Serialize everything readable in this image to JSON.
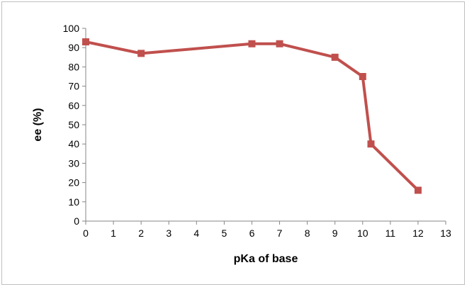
{
  "chart_data": {
    "type": "line",
    "title": "",
    "xlabel": "pKa of base",
    "ylabel": "ee (%)",
    "xlim": [
      0,
      13
    ],
    "ylim": [
      0,
      100
    ],
    "x_ticks": [
      0,
      1,
      2,
      3,
      4,
      5,
      6,
      7,
      8,
      9,
      10,
      11,
      12,
      13
    ],
    "y_ticks": [
      0,
      10,
      20,
      30,
      40,
      50,
      60,
      70,
      80,
      90,
      100
    ],
    "grid": false,
    "legend": "none",
    "series": [
      {
        "color": "#c0504d",
        "marker": "square",
        "x": [
          0,
          2,
          6,
          7,
          9,
          10,
          10.3,
          12
        ],
        "y": [
          93,
          87,
          92,
          92,
          85,
          75,
          40,
          16
        ]
      }
    ]
  }
}
